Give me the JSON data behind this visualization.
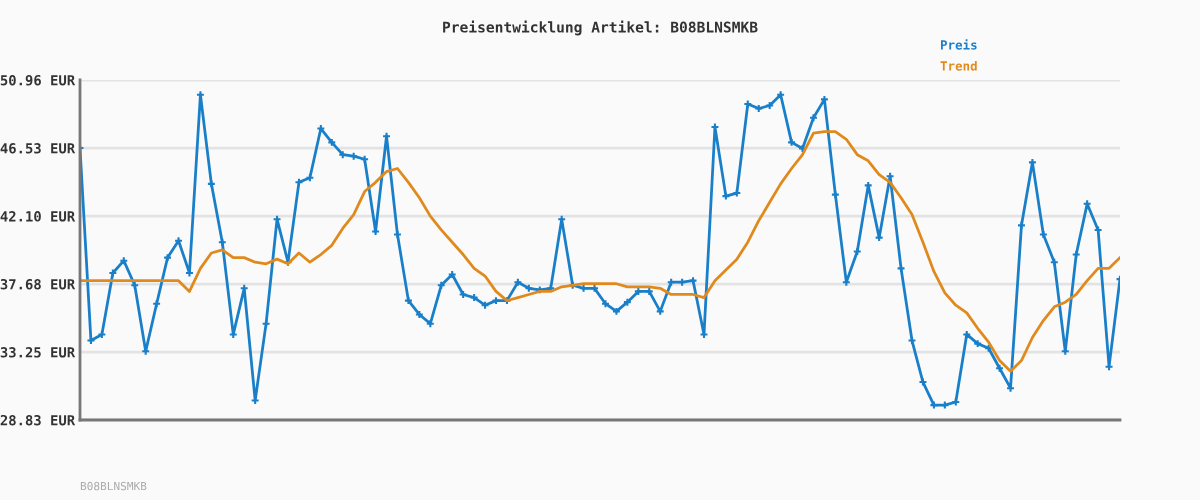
{
  "chart_data": {
    "type": "line",
    "title": "Preisentwicklung Artikel: B08BLNSMKB",
    "categories": [
      null,
      null,
      null,
      null,
      null,
      null,
      null,
      null,
      null,
      null,
      null,
      null,
      null,
      null,
      null,
      null,
      null,
      null,
      null,
      null,
      null,
      null,
      null,
      null,
      null,
      null,
      null,
      null,
      null,
      null,
      null,
      null,
      null,
      null,
      null,
      null,
      null,
      null,
      null,
      null,
      null,
      null,
      null,
      null,
      null,
      null,
      null,
      null,
      null,
      null,
      null,
      null,
      null,
      null,
      null,
      null,
      null,
      null,
      null,
      null,
      null,
      null,
      null,
      null,
      null,
      null,
      null,
      null,
      null,
      null,
      null,
      null,
      null,
      null,
      null,
      null,
      null,
      null,
      null,
      null,
      null,
      null,
      null,
      null,
      null,
      null,
      null,
      null,
      null,
      null,
      null,
      null,
      null,
      null,
      null,
      null
    ],
    "series": [
      {
        "name": "Preis",
        "color": "#1a7fc9",
        "marker": "cross",
        "values": [
          46.53,
          34.0,
          34.4,
          38.4,
          39.2,
          37.6,
          33.3,
          36.4,
          39.4,
          40.5,
          38.4,
          50.0,
          44.2,
          40.4,
          34.4,
          37.4,
          30.1,
          35.1,
          41.9,
          39.1,
          44.3,
          44.6,
          47.8,
          46.9,
          46.1,
          46.0,
          45.8,
          41.1,
          47.3,
          40.9,
          36.6,
          35.7,
          35.1,
          37.6,
          38.3,
          37.0,
          36.8,
          36.3,
          36.6,
          36.6,
          37.8,
          37.4,
          37.3,
          37.4,
          41.9,
          37.6,
          37.4,
          37.4,
          36.4,
          35.9,
          36.5,
          37.2,
          37.2,
          35.9,
          37.8,
          37.8,
          37.9,
          34.4,
          47.9,
          43.4,
          43.6,
          49.4,
          49.1,
          49.3,
          50.0,
          46.9,
          46.5,
          48.5,
          49.7,
          43.5,
          37.8,
          39.8,
          44.1,
          40.7,
          44.7,
          38.7,
          34.0,
          31.3,
          29.8,
          29.8,
          30.0,
          34.4,
          33.8,
          33.5,
          32.2,
          30.9,
          41.5,
          45.6,
          40.9,
          39.1,
          33.3,
          39.6,
          42.9,
          41.2,
          32.3,
          38.0
        ]
      },
      {
        "name": "Trend",
        "color": "#e08a1e",
        "marker": "none",
        "values": [
          37.9,
          37.9,
          37.9,
          37.9,
          37.9,
          37.9,
          37.9,
          37.9,
          37.9,
          37.9,
          37.2,
          38.7,
          39.7,
          39.9,
          39.4,
          39.4,
          39.1,
          39.0,
          39.3,
          39.0,
          39.7,
          39.1,
          39.6,
          40.2,
          41.3,
          42.2,
          43.7,
          44.3,
          45.0,
          45.2,
          44.3,
          43.3,
          42.1,
          41.2,
          40.4,
          39.6,
          38.7,
          38.2,
          37.2,
          36.6,
          36.8,
          37.0,
          37.2,
          37.2,
          37.5,
          37.6,
          37.7,
          37.7,
          37.7,
          37.7,
          37.5,
          37.5,
          37.5,
          37.4,
          37.0,
          37.0,
          37.0,
          36.8,
          37.9,
          38.6,
          39.3,
          40.4,
          41.8,
          43.0,
          44.2,
          45.2,
          46.1,
          47.5,
          47.6,
          47.6,
          47.1,
          46.1,
          45.7,
          44.8,
          44.3,
          43.3,
          42.2,
          40.4,
          38.5,
          37.1,
          36.3,
          35.8,
          34.8,
          33.9,
          32.7,
          32.0,
          32.7,
          34.2,
          35.3,
          36.2,
          36.5,
          37.0,
          37.9,
          38.7,
          38.7,
          39.4
        ]
      }
    ],
    "ylim": [
      28.83,
      50.96
    ],
    "yticks": [
      {
        "value": 28.83,
        "label": "28.83 EUR"
      },
      {
        "value": 33.25,
        "label": "33.25 EUR"
      },
      {
        "value": 37.68,
        "label": "37.68 EUR"
      },
      {
        "value": 42.1,
        "label": "42.10 EUR"
      },
      {
        "value": 46.53,
        "label": "46.53 EUR"
      },
      {
        "value": 50.96,
        "label": "50.96 EUR"
      }
    ],
    "grid": "y",
    "legend": "top right",
    "tick_labels": "y",
    "annotations": [
      "B08BLNSMKB"
    ]
  }
}
